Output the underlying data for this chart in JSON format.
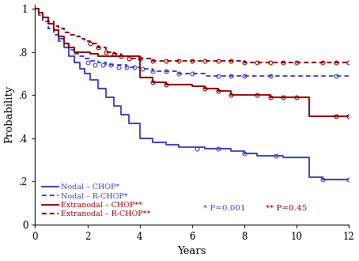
{
  "xlabel": "Years",
  "ylabel": "Probability",
  "xlim": [
    0,
    12
  ],
  "ylim": [
    0,
    1.02
  ],
  "xticks": [
    0,
    2,
    4,
    6,
    8,
    10,
    12
  ],
  "yticks": [
    0,
    0.2,
    0.4,
    0.6,
    0.8,
    1.0
  ],
  "yticklabels": [
    "0",
    ".2",
    ".4",
    ".6",
    ".8",
    "1"
  ],
  "background_color": "#ffffff",
  "nodal_chop_color": "#4040bb",
  "nodal_rchop_color": "#4040bb",
  "extranodal_chop_color": "#8b0000",
  "extranodal_rchop_color": "#8b0000",
  "annotation_star1": "* P=0.001",
  "annotation_star2": "** P=0.45",
  "legend_labels": [
    "Nodal – CHOP*",
    "Nodal – R-CHOP*",
    "Extranodal – CHOP**",
    "Extranodal – R-CHOP**"
  ],
  "nodal_chop_x": [
    0,
    0.15,
    0.3,
    0.5,
    0.7,
    0.9,
    1.1,
    1.3,
    1.5,
    1.7,
    1.9,
    2.1,
    2.4,
    2.7,
    3.0,
    3.3,
    3.6,
    4.0,
    4.5,
    5.0,
    5.5,
    6.0,
    6.5,
    7.0,
    7.5,
    8.0,
    8.5,
    9.0,
    9.5,
    10.0,
    10.5,
    11.0,
    11.5,
    12.0
  ],
  "nodal_chop_y": [
    1.0,
    0.98,
    0.96,
    0.93,
    0.9,
    0.86,
    0.82,
    0.78,
    0.75,
    0.72,
    0.7,
    0.67,
    0.63,
    0.59,
    0.55,
    0.51,
    0.47,
    0.4,
    0.38,
    0.37,
    0.36,
    0.36,
    0.35,
    0.35,
    0.34,
    0.33,
    0.32,
    0.32,
    0.31,
    0.31,
    0.22,
    0.21,
    0.21,
    0.21
  ],
  "nodal_rchop_x": [
    0,
    0.15,
    0.3,
    0.5,
    0.7,
    0.9,
    1.1,
    1.3,
    1.5,
    1.7,
    1.9,
    2.1,
    2.4,
    2.7,
    3.0,
    3.5,
    4.0,
    4.5,
    5.0,
    5.5,
    6.0,
    6.5,
    7.0,
    7.5,
    8.0,
    9.0,
    10.0,
    11.0,
    12.0
  ],
  "nodal_rchop_y": [
    1.0,
    0.97,
    0.94,
    0.91,
    0.88,
    0.85,
    0.83,
    0.81,
    0.79,
    0.78,
    0.77,
    0.76,
    0.75,
    0.74,
    0.74,
    0.73,
    0.72,
    0.71,
    0.71,
    0.7,
    0.7,
    0.69,
    0.69,
    0.69,
    0.69,
    0.69,
    0.69,
    0.69,
    0.69
  ],
  "extranodal_chop_x": [
    0,
    0.15,
    0.3,
    0.5,
    0.7,
    0.9,
    1.1,
    1.3,
    1.5,
    1.8,
    2.1,
    2.4,
    2.8,
    3.2,
    3.6,
    4.0,
    4.5,
    5.0,
    5.5,
    6.0,
    6.5,
    7.0,
    7.5,
    8.0,
    8.5,
    9.0,
    9.5,
    10.0,
    10.5,
    11.0,
    11.5,
    12.0
  ],
  "extranodal_chop_y": [
    1.0,
    0.98,
    0.96,
    0.93,
    0.9,
    0.87,
    0.84,
    0.82,
    0.8,
    0.8,
    0.79,
    0.78,
    0.78,
    0.78,
    0.78,
    0.68,
    0.66,
    0.65,
    0.65,
    0.64,
    0.63,
    0.62,
    0.6,
    0.6,
    0.6,
    0.59,
    0.59,
    0.59,
    0.5,
    0.5,
    0.5,
    0.5
  ],
  "extranodal_rchop_x": [
    0,
    0.15,
    0.3,
    0.5,
    0.7,
    0.9,
    1.1,
    1.3,
    1.5,
    1.7,
    1.9,
    2.1,
    2.4,
    2.7,
    3.0,
    3.3,
    3.6,
    4.0,
    4.5,
    5.0,
    5.5,
    6.0,
    6.5,
    7.0,
    7.5,
    8.0,
    8.5,
    9.0,
    9.5,
    10.0,
    11.0,
    11.5,
    12.0
  ],
  "extranodal_rchop_y": [
    1.0,
    0.98,
    0.96,
    0.94,
    0.92,
    0.91,
    0.89,
    0.88,
    0.87,
    0.86,
    0.85,
    0.84,
    0.82,
    0.8,
    0.79,
    0.78,
    0.77,
    0.77,
    0.76,
    0.76,
    0.76,
    0.76,
    0.76,
    0.76,
    0.76,
    0.75,
    0.75,
    0.75,
    0.75,
    0.75,
    0.75,
    0.75,
    0.75
  ],
  "censor_size": 3.5,
  "nodal_chop_censors_x": [
    6.2,
    7.0,
    8.0,
    9.2,
    11.0,
    12.0
  ],
  "nodal_chop_censors_y": [
    0.35,
    0.35,
    0.33,
    0.32,
    0.21,
    0.21
  ],
  "nodal_rchop_censors_x": [
    2.0,
    2.3,
    2.6,
    2.9,
    3.2,
    3.5,
    3.8,
    4.1,
    4.5,
    5.0,
    5.5,
    6.0,
    7.0,
    7.5,
    8.0,
    9.0,
    11.5
  ],
  "nodal_rchop_censors_y": [
    0.75,
    0.74,
    0.74,
    0.74,
    0.73,
    0.73,
    0.73,
    0.72,
    0.71,
    0.71,
    0.7,
    0.7,
    0.69,
    0.69,
    0.69,
    0.69,
    0.69
  ],
  "extranodal_chop_censors_x": [
    4.5,
    5.0,
    6.5,
    7.0,
    7.5,
    8.5,
    9.0,
    9.5,
    10.0,
    11.5,
    12.0
  ],
  "extranodal_chop_censors_y": [
    0.66,
    0.65,
    0.63,
    0.62,
    0.6,
    0.6,
    0.59,
    0.59,
    0.59,
    0.5,
    0.5
  ],
  "extranodal_rchop_censors_x": [
    2.1,
    2.4,
    2.7,
    3.0,
    3.3,
    3.6,
    4.0,
    4.5,
    5.0,
    5.5,
    6.0,
    6.5,
    7.0,
    7.5,
    8.0,
    8.5,
    9.0,
    9.5,
    10.0,
    11.0,
    11.5,
    12.0
  ],
  "extranodal_rchop_censors_y": [
    0.84,
    0.82,
    0.8,
    0.79,
    0.78,
    0.77,
    0.77,
    0.76,
    0.76,
    0.76,
    0.76,
    0.76,
    0.76,
    0.76,
    0.75,
    0.75,
    0.75,
    0.75,
    0.75,
    0.75,
    0.75,
    0.75
  ]
}
